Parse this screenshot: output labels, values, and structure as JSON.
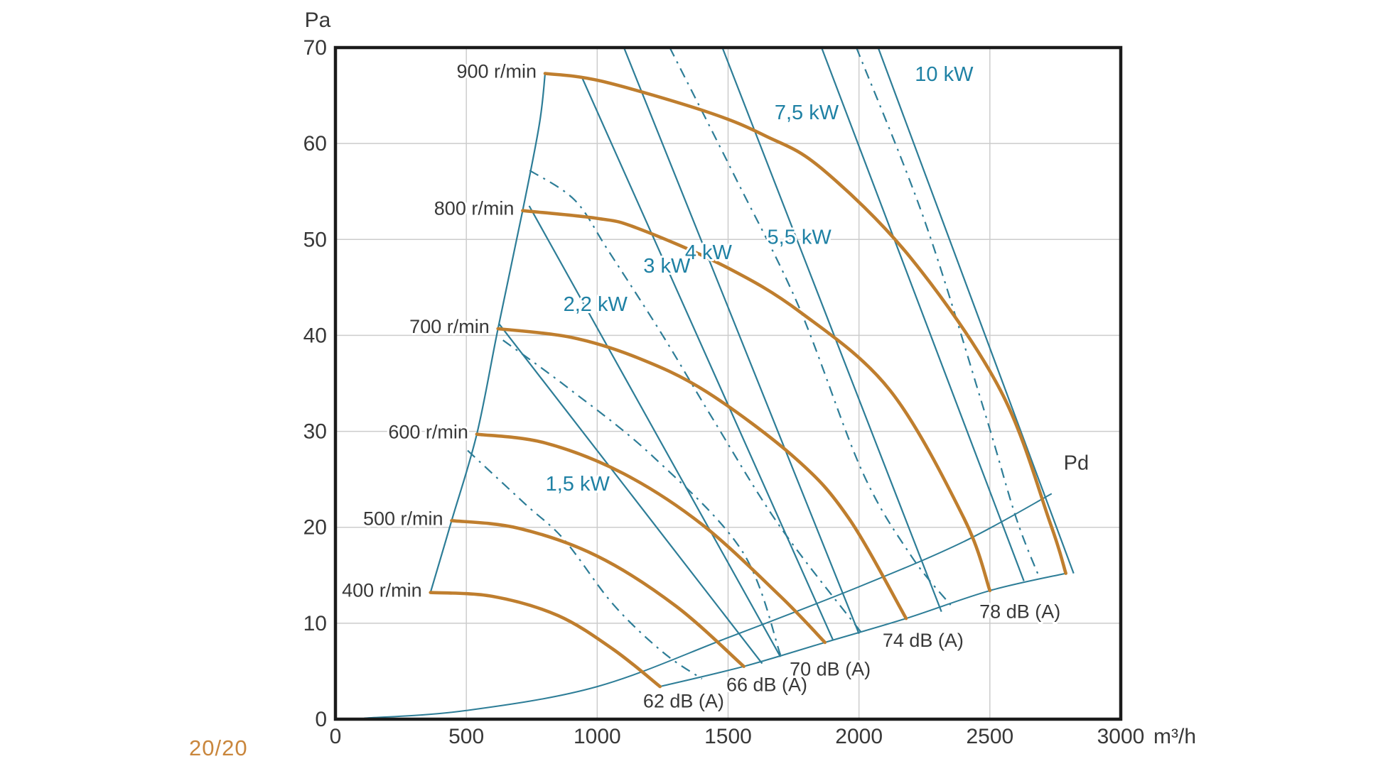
{
  "page": {
    "footer_label": "20/20",
    "footer_color": "#c9863c"
  },
  "chart_data": {
    "type": "line",
    "xlabel": "m³/h",
    "ylabel": "Pa",
    "xlim": [
      0,
      3000
    ],
    "ylim": [
      0,
      70
    ],
    "x_ticks": [
      0,
      500,
      1000,
      1500,
      2000,
      2500,
      3000
    ],
    "y_ticks": [
      0,
      10,
      20,
      30,
      40,
      50,
      60,
      70
    ],
    "grid": true,
    "legend_position": "none",
    "colors": {
      "fan_curve": "#bf7e2e",
      "teal_line": "#2d7d97",
      "teal_text": "#1f81a4",
      "grid": "#cccccc",
      "frame": "#1b1b1b",
      "text": "#383838"
    },
    "fan_curves": [
      {
        "label": "400 r/min",
        "rpm": 400,
        "points": [
          [
            363,
            13.2
          ],
          [
            600,
            12.8
          ],
          [
            850,
            10.8
          ],
          [
            1060,
            7.3
          ],
          [
            1240,
            3.4
          ]
        ]
      },
      {
        "label": "500 r/min",
        "rpm": 500,
        "points": [
          [
            444,
            20.7
          ],
          [
            700,
            19.9
          ],
          [
            1000,
            17.0
          ],
          [
            1300,
            11.8
          ],
          [
            1560,
            5.5
          ]
        ]
      },
      {
        "label": "600 r/min",
        "rpm": 600,
        "points": [
          [
            540,
            29.7
          ],
          [
            800,
            28.8
          ],
          [
            1100,
            25.6
          ],
          [
            1400,
            20.3
          ],
          [
            1700,
            12.8
          ],
          [
            1870,
            8.0
          ]
        ]
      },
      {
        "label": "700 r/min",
        "rpm": 700,
        "points": [
          [
            621,
            40.7
          ],
          [
            900,
            39.8
          ],
          [
            1151,
            37.7
          ],
          [
            1419,
            34.1
          ],
          [
            1761,
            27.1
          ],
          [
            1962,
            20.9
          ],
          [
            2180,
            10.5
          ]
        ]
      },
      {
        "label": "800 r/min",
        "rpm": 800,
        "points": [
          [
            715,
            53.0
          ],
          [
            1000,
            52.2
          ],
          [
            1151,
            51.2
          ],
          [
            1487,
            47.2
          ],
          [
            1777,
            42.4
          ],
          [
            2118,
            34.3
          ],
          [
            2400,
            21.0
          ],
          [
            2500,
            13.4
          ]
        ]
      },
      {
        "label": "900 r/min",
        "rpm": 900,
        "points": [
          [
            801,
            67.3
          ],
          [
            1016,
            66.5
          ],
          [
            1419,
            63.3
          ],
          [
            1642,
            60.8
          ],
          [
            1857,
            57.4
          ],
          [
            2200,
            48.0
          ],
          [
            2540,
            34.3
          ],
          [
            2731,
            20.4
          ],
          [
            2790,
            15.2
          ]
        ]
      }
    ],
    "power_lines": [
      {
        "label": "1,5 kW",
        "kw": 1.5,
        "points": [
          [
            625,
            41.2
          ],
          [
            1630,
            5.8
          ]
        ],
        "label_pos": [
          925,
          24.5
        ]
      },
      {
        "label": "2,2 kW",
        "kw": 2.2,
        "points": [
          [
            740,
            53.5
          ],
          [
            1700,
            6.5
          ]
        ],
        "label_pos": [
          993,
          43.2
        ]
      },
      {
        "label": "3 kW",
        "kw": 3,
        "points": [
          [
            940,
            67.0
          ],
          [
            1900,
            8.3
          ]
        ],
        "label_pos": [
          1266,
          47.2
        ]
      },
      {
        "label": "4 kW",
        "kw": 4,
        "points": [
          [
            1102,
            70.0
          ],
          [
            2000,
            8.9
          ]
        ],
        "label_pos": [
          1425,
          48.6
        ]
      },
      {
        "label": "5,5 kW",
        "kw": 5.5,
        "points": [
          [
            1478,
            70.0
          ],
          [
            2315,
            11.2
          ]
        ],
        "label_pos": [
          1772,
          50.2
        ]
      },
      {
        "label": "7,5 kW",
        "kw": 7.5,
        "points": [
          [
            1857,
            70.0
          ],
          [
            2630,
            14.4
          ]
        ],
        "label_pos": [
          1800,
          63.2
        ]
      },
      {
        "label": "10 kW",
        "kw": 10,
        "points": [
          [
            2073,
            70.0
          ],
          [
            2820,
            15.2
          ]
        ],
        "label_pos": [
          2325,
          67.2
        ]
      }
    ],
    "noise_curves": [
      {
        "label": "62 dB (A)",
        "db": 62,
        "points": [
          [
            505,
            28.0
          ],
          [
            726,
            22.4
          ],
          [
            874,
            18.7
          ],
          [
            1060,
            12.0
          ],
          [
            1250,
            7.0
          ],
          [
            1400,
            4.2
          ]
        ],
        "label_pos": [
          1330,
          1.9
        ]
      },
      {
        "label": "66 dB (A)",
        "db": 66,
        "points": [
          [
            640,
            39.5
          ],
          [
            890,
            34.5
          ],
          [
            1212,
            27.4
          ],
          [
            1554,
            17.5
          ],
          [
            1700,
            6.7
          ]
        ],
        "label_pos": [
          1648,
          3.6
        ]
      },
      {
        "label": "70 dB (A)",
        "db": 70,
        "points": [
          [
            742,
            57.2
          ],
          [
            914,
            54.1
          ],
          [
            1043,
            48.8
          ],
          [
            1250,
            40.0
          ],
          [
            1446,
            31.1
          ],
          [
            1700,
            20.0
          ],
          [
            2010,
            9.0
          ]
        ],
        "label_pos": [
          1890,
          5.2
        ]
      },
      {
        "label": "74 dB (A)",
        "db": 74,
        "points": [
          [
            1277,
            70.0
          ],
          [
            1527,
            56.5
          ],
          [
            1770,
            43.0
          ],
          [
            2011,
            25.9
          ],
          [
            2200,
            17.0
          ],
          [
            2350,
            11.9
          ]
        ],
        "label_pos": [
          2245,
          8.2
        ]
      },
      {
        "label": "78 dB (A)",
        "db": 78,
        "points": [
          [
            1990,
            70.0
          ],
          [
            2250,
            52.0
          ],
          [
            2480,
            32.0
          ],
          [
            2600,
            21.0
          ],
          [
            2690,
            14.7
          ]
        ],
        "label_pos": [
          2615,
          11.2
        ]
      }
    ],
    "surge_line": {
      "points": [
        [
          363,
          13.2
        ],
        [
          444,
          20.7
        ],
        [
          540,
          29.7
        ],
        [
          621,
          40.7
        ],
        [
          715,
          53.0
        ],
        [
          779,
          62.0
        ],
        [
          801,
          67.3
        ]
      ]
    },
    "envelope_line": {
      "points": [
        [
          1240,
          3.4
        ],
        [
          1560,
          5.5
        ],
        [
          1870,
          8.0
        ],
        [
          2180,
          10.5
        ],
        [
          2500,
          13.4
        ],
        [
          2790,
          15.2
        ]
      ]
    },
    "pd_curve": {
      "label": "Pd",
      "points": [
        [
          110,
          0.1
        ],
        [
          500,
          0.9
        ],
        [
          1000,
          3.4
        ],
        [
          1500,
          8.5
        ],
        [
          2000,
          13.8
        ],
        [
          2400,
          18.5
        ],
        [
          2736,
          23.5
        ]
      ],
      "label_pos": [
        2830,
        26.0
      ]
    }
  }
}
